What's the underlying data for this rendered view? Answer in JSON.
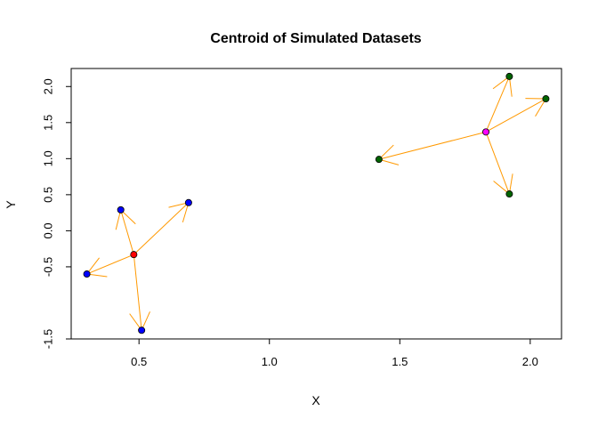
{
  "chart_data": {
    "type": "scatter",
    "title": "Centroid of Simulated Datasets",
    "xlabel": "X",
    "ylabel": "Y",
    "xlim": [
      0.24,
      2.12
    ],
    "ylim": [
      -1.5,
      2.25
    ],
    "xticks": [
      0.5,
      1.0,
      1.5,
      2.0
    ],
    "xtick_labels": [
      "0.5",
      "1.0",
      "1.5",
      "2.0"
    ],
    "yticks": [
      -1.5,
      -0.5,
      0.0,
      0.5,
      1.0,
      1.5,
      2.0
    ],
    "ytick_labels": [
      "-1.5",
      "-0.5",
      "0.0",
      "0.5",
      "1.0",
      "1.5",
      "2.0"
    ],
    "grid": false,
    "arrow_color": "#ff9900",
    "groups": [
      {
        "centroid": {
          "x": 0.48,
          "y": -0.33,
          "color": "#ff0000"
        },
        "point_color": "#0000ff",
        "points": [
          {
            "x": 0.43,
            "y": 0.29
          },
          {
            "x": 0.69,
            "y": 0.39
          },
          {
            "x": 0.3,
            "y": -0.6
          },
          {
            "x": 0.51,
            "y": -1.38
          }
        ]
      },
      {
        "centroid": {
          "x": 1.83,
          "y": 1.37,
          "color": "#ff00ff"
        },
        "point_color": "#006400",
        "points": [
          {
            "x": 1.92,
            "y": 2.14
          },
          {
            "x": 2.06,
            "y": 1.83
          },
          {
            "x": 1.42,
            "y": 0.99
          },
          {
            "x": 1.92,
            "y": 0.51
          }
        ]
      }
    ]
  }
}
